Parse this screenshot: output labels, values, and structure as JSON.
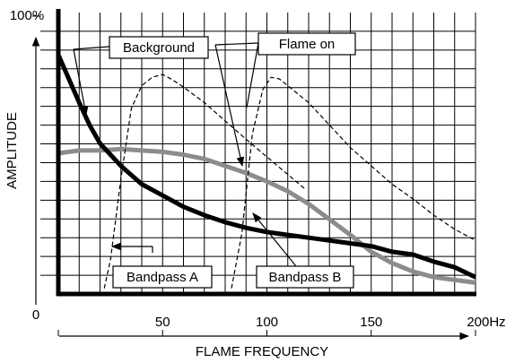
{
  "chart_data": {
    "type": "line",
    "xlabel": "FLAME FREQUENCY",
    "ylabel": "AMPLITUDE",
    "xlim": [
      0,
      200
    ],
    "ylim": [
      0,
      100
    ],
    "xticks": [
      0,
      50,
      100,
      150,
      {
        "value": 200,
        "label": "200Hz"
      }
    ],
    "yticks": [
      {
        "value": 100,
        "label": "100%"
      }
    ],
    "grid": true,
    "series": [
      {
        "name": "Background",
        "color": "#000000",
        "style": "solid",
        "x": [
          0,
          10,
          15,
          20,
          30,
          40,
          50,
          60,
          70,
          80,
          90,
          100,
          110,
          120,
          130,
          140,
          150,
          160,
          170,
          180,
          190,
          200
        ],
        "values": [
          85,
          68,
          60,
          53.5,
          45.5,
          39,
          35,
          31,
          28,
          25.5,
          23.5,
          22,
          21,
          20,
          19,
          18,
          17,
          15,
          14,
          11.5,
          9.5,
          6
        ]
      },
      {
        "name": "Flame on",
        "color": "#8c8c8c",
        "style": "solid",
        "x": [
          0,
          10,
          20,
          30,
          40,
          50,
          60,
          70,
          80,
          90,
          100,
          110,
          120,
          130,
          140,
          150,
          160,
          170,
          180,
          190,
          200
        ],
        "values": [
          50,
          51,
          51,
          51.5,
          51,
          50.5,
          49.5,
          48,
          45.5,
          43,
          40,
          36.5,
          32,
          26.5,
          21,
          15,
          11,
          8,
          6,
          5,
          4
        ]
      },
      {
        "name": "Bandpass A",
        "color": "#000000",
        "style": "dashed",
        "x": [
          22,
          25,
          30,
          35,
          40,
          45,
          50,
          55,
          60,
          70,
          80,
          90,
          100,
          110,
          118
        ],
        "values": [
          2,
          12,
          41,
          66,
          74,
          77,
          78,
          76,
          73.5,
          68,
          61.5,
          55,
          48.7,
          42.5,
          37.5
        ]
      },
      {
        "name": "Bandpass B",
        "color": "#000000",
        "style": "dashed",
        "x": [
          83,
          88,
          93,
          98,
          102,
          106,
          110,
          120,
          130,
          140,
          150,
          160,
          170,
          180,
          190,
          200
        ],
        "values": [
          2,
          21.5,
          56.7,
          72.6,
          77,
          76.4,
          74,
          68,
          60,
          52,
          45.5,
          39,
          33.8,
          28,
          23,
          19
        ]
      }
    ]
  }
}
